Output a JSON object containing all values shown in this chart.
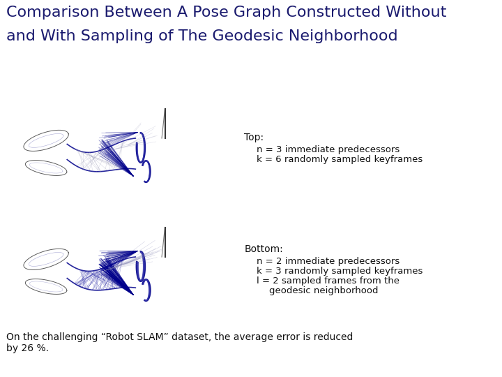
{
  "title_line1": "Comparison Between A Pose Graph Constructed Without",
  "title_line2": "and With Sampling of The Geodesic Neighborhood",
  "title_fontsize": 16,
  "title_color": "#1a1a6e",
  "top_label": "Top:",
  "top_desc_line1": "n = 3 immediate predecessors",
  "top_desc_line2": "k = 6 randomly sampled keyframes",
  "bottom_label": "Bottom:",
  "bottom_desc_line1": "n = 2 immediate predecessors",
  "bottom_desc_line2": "k = 3 randomly sampled keyframes",
  "bottom_desc_line3": "l = 2 sampled frames from the",
  "bottom_desc_line4": "geodesic neighborhood",
  "footer_line1": "On the challenging “Robot SLAM” dataset, the average error is reduced",
  "footer_line2": "by 26 %.",
  "text_color": "#111111",
  "label_fontsize": 10,
  "desc_fontsize": 9.5,
  "footer_fontsize": 10,
  "bg_color": "#ffffff"
}
